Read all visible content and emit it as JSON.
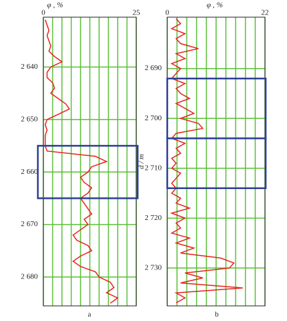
{
  "chart_data": [
    {
      "type": "line",
      "xlabel": "φ , %",
      "panel_label": "a",
      "xlim": [
        0,
        25
      ],
      "xticks": [
        0,
        25
      ],
      "xgrid": [
        0,
        2.5,
        5,
        7.5,
        10,
        12.5,
        15,
        17.5,
        20,
        22.5,
        25
      ],
      "ylim": [
        2630.5,
        2685.5
      ],
      "yticks": [
        {
          "value": 2640,
          "label": "2 640"
        },
        {
          "value": 2650,
          "label": "2 650"
        },
        {
          "value": 2660,
          "label": "2 660"
        },
        {
          "value": 2670,
          "label": "2 670"
        },
        {
          "value": 2680,
          "label": "2 680"
        }
      ],
      "grid": true,
      "grid_color": "#5cbf3a",
      "color": "#e8241c",
      "depth": [
        2631,
        2632,
        2633,
        2634,
        2635,
        2636,
        2637,
        2638,
        2639,
        2640,
        2641,
        2642,
        2643,
        2644,
        2645,
        2646,
        2647,
        2648,
        2649,
        2650,
        2651,
        2652,
        2653,
        2654,
        2655,
        2656,
        2657,
        2658,
        2659,
        2660,
        2661,
        2662,
        2663,
        2664,
        2665,
        2666,
        2667,
        2668,
        2669,
        2670,
        2671,
        2672,
        2673,
        2674,
        2675,
        2676,
        2677,
        2678,
        2679,
        2680,
        2681,
        2682,
        2683,
        2684,
        2685
      ],
      "values": [
        0.5,
        1,
        1.5,
        1,
        1.5,
        2,
        1.5,
        3,
        5,
        2,
        1,
        1,
        2.5,
        3,
        2,
        4,
        6,
        7,
        4,
        1,
        0.5,
        1,
        0.5,
        0.5,
        0.5,
        1,
        14,
        17,
        13,
        12,
        10,
        11,
        13,
        12,
        10,
        11,
        12,
        13,
        11,
        12,
        10,
        8,
        9,
        12,
        13,
        10,
        8,
        10,
        14,
        15,
        18,
        19,
        17,
        20,
        18
      ],
      "zones": [
        {
          "top": 2655,
          "bottom": 2665
        }
      ],
      "zone_color": "#2e3f94"
    },
    {
      "type": "line",
      "xlabel": "φ , %",
      "ylabel": "d / m",
      "panel_label": "b",
      "xlim": [
        0,
        22
      ],
      "xticks": [
        0,
        22
      ],
      "xgrid": [
        0,
        2.2,
        4.4,
        6.6,
        8.8,
        11,
        13.2,
        15.4,
        17.6,
        19.8,
        22
      ],
      "ylim": [
        2679.7,
        2737.6
      ],
      "yticks": [
        {
          "value": 2690,
          "label": "2 690"
        },
        {
          "value": 2700,
          "label": "2 700"
        },
        {
          "value": 2710,
          "label": "2 710"
        },
        {
          "value": 2720,
          "label": "2 720"
        },
        {
          "value": 2730,
          "label": "2 730"
        }
      ],
      "grid": true,
      "grid_color": "#5cbf3a",
      "color": "#e8241c",
      "depth": [
        2680,
        2681,
        2682,
        2683,
        2684,
        2685,
        2686,
        2687,
        2688,
        2689,
        2690,
        2691,
        2692,
        2693,
        2694,
        2695,
        2696,
        2697,
        2698,
        2699,
        2700,
        2701,
        2702,
        2703,
        2704,
        2705,
        2706,
        2707,
        2708,
        2709,
        2710,
        2711,
        2712,
        2713,
        2714,
        2715,
        2716,
        2717,
        2718,
        2719,
        2720,
        2721,
        2722,
        2723,
        2724,
        2725,
        2726,
        2727,
        2728,
        2729,
        2730,
        2731,
        2732,
        2733,
        2734,
        2735,
        2736,
        2737
      ],
      "values": [
        2,
        3,
        1,
        4,
        2,
        3,
        7,
        2,
        4,
        1,
        3,
        2,
        1,
        4,
        2,
        3,
        5,
        2,
        4,
        6,
        3,
        7,
        8,
        2,
        1,
        4,
        2,
        3,
        1,
        2,
        1,
        3,
        2,
        1,
        2,
        1,
        3,
        2,
        5,
        1,
        4,
        2,
        3,
        1,
        5,
        2,
        6,
        3,
        12,
        15,
        14,
        4,
        8,
        3,
        17,
        2,
        4,
        2
      ],
      "zones": [
        {
          "top": 2692,
          "bottom": 2704
        },
        {
          "top": 2704,
          "bottom": 2714
        }
      ],
      "zone_color": "#2e3f94"
    }
  ]
}
